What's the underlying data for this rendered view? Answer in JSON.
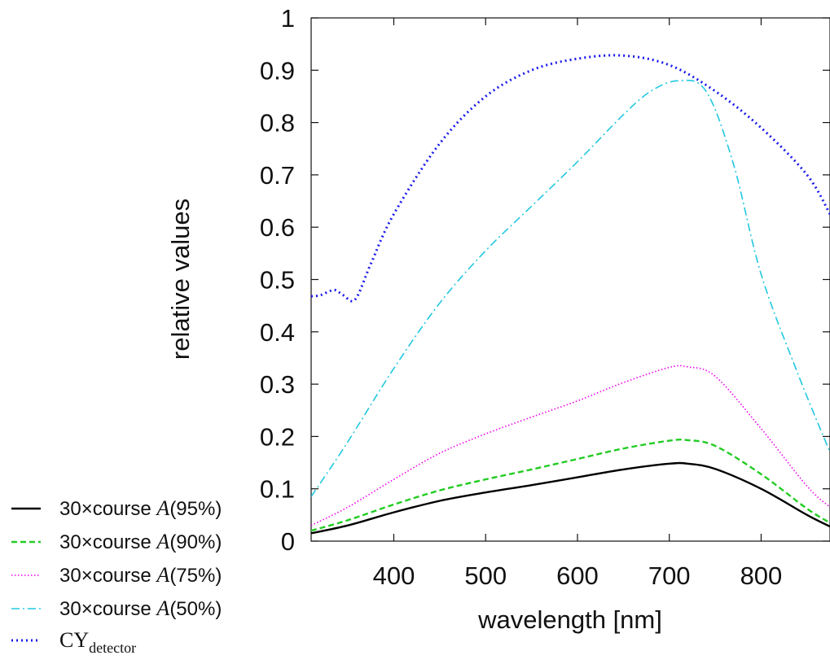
{
  "chart_data": {
    "type": "line",
    "xlabel": "wavelength [nm]",
    "ylabel": "relative values",
    "xlim": [
      310,
      875
    ],
    "ylim": [
      0,
      1
    ],
    "x_ticks": [
      "400",
      "500",
      "600",
      "700",
      "800"
    ],
    "y_ticks": [
      "0",
      "0.1",
      "0.2",
      "0.3",
      "0.4",
      "0.5",
      "0.6",
      "0.7",
      "0.8",
      "0.9",
      "1"
    ],
    "x_tick_values": [
      400,
      500,
      600,
      700,
      800
    ],
    "y_tick_values": [
      0,
      0.1,
      0.2,
      0.3,
      0.4,
      0.5,
      0.6,
      0.7,
      0.8,
      0.9,
      1
    ],
    "grid": false,
    "legend_position": "bottom-left outside",
    "series": [
      {
        "legend_prefix": "30×course ",
        "legend_var": "A",
        "legend_suffix": "(95%)",
        "color": "#000000",
        "dash": "solid",
        "x": [
          310,
          350,
          400,
          450,
          500,
          550,
          600,
          650,
          700,
          720,
          750,
          800,
          850,
          875
        ],
        "y": [
          0.015,
          0.03,
          0.055,
          0.077,
          0.093,
          0.107,
          0.122,
          0.137,
          0.148,
          0.148,
          0.138,
          0.1,
          0.05,
          0.028
        ]
      },
      {
        "legend_prefix": "30×course ",
        "legend_var": "A",
        "legend_suffix": "(90%)",
        "color": "#22cc22",
        "dash": "dashed",
        "x": [
          310,
          350,
          400,
          450,
          500,
          550,
          600,
          650,
          700,
          720,
          750,
          800,
          850,
          875
        ],
        "y": [
          0.02,
          0.04,
          0.07,
          0.097,
          0.118,
          0.137,
          0.157,
          0.177,
          0.192,
          0.193,
          0.182,
          0.128,
          0.062,
          0.035
        ]
      },
      {
        "legend_prefix": "30×course ",
        "legend_var": "A",
        "legend_suffix": "(75%)",
        "color": "#ee00ee",
        "dash": "dotted",
        "x": [
          310,
          350,
          400,
          450,
          500,
          550,
          600,
          650,
          700,
          720,
          750,
          800,
          850,
          875
        ],
        "y": [
          0.03,
          0.065,
          0.118,
          0.168,
          0.205,
          0.237,
          0.268,
          0.303,
          0.332,
          0.333,
          0.315,
          0.215,
          0.105,
          0.065
        ]
      },
      {
        "legend_prefix": "30×course ",
        "legend_var": "A",
        "legend_suffix": "(50%)",
        "color": "#22c8e0",
        "dash": "dashdot",
        "x": [
          310,
          350,
          400,
          450,
          500,
          550,
          600,
          650,
          680,
          710,
          740,
          770,
          800,
          840,
          875
        ],
        "y": [
          0.085,
          0.19,
          0.33,
          0.455,
          0.555,
          0.64,
          0.725,
          0.815,
          0.86,
          0.88,
          0.86,
          0.72,
          0.51,
          0.32,
          0.17
        ]
      },
      {
        "legend_prefix": "CY",
        "legend_var": "",
        "legend_suffix": "",
        "legend_sub": "detector",
        "color": "#1a1aee",
        "dash": "dotted-heavy",
        "x": [
          310,
          320,
          335,
          345,
          358,
          375,
          400,
          450,
          500,
          550,
          600,
          650,
          700,
          750,
          800,
          850,
          875
        ],
        "y": [
          0.468,
          0.47,
          0.48,
          0.47,
          0.462,
          0.53,
          0.625,
          0.76,
          0.85,
          0.9,
          0.922,
          0.928,
          0.91,
          0.86,
          0.79,
          0.7,
          0.625
        ]
      }
    ]
  }
}
